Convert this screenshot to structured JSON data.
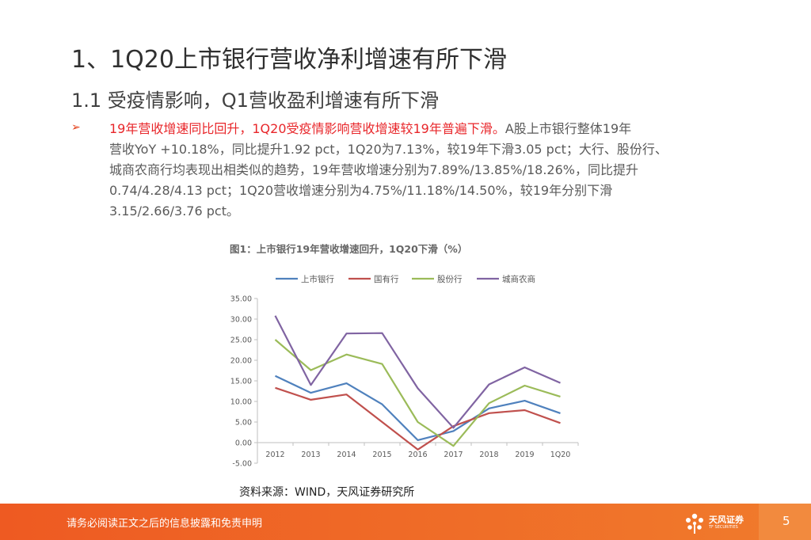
{
  "slide": {
    "title": "1、1Q20上市银行营收净利增速有所下滑",
    "subtitle": "1.1 受疫情影响，Q1营收盈利增速有所下滑",
    "bullet_marker": "➢",
    "bullet": {
      "highlight": "19年营收增速同比回升，1Q20受疫情影响营收增速较19年普遍下滑。",
      "line1_rest": "A股上市银行整体19年",
      "line2": "营收YoY +10.18%，同比提升1.92 pct，1Q20为7.13%，较19年下滑3.05 pct；大行、股份行、",
      "line3": "城商农商行均表现出相类似的趋势，19年营收增速分别为7.89%/13.85%/18.26%，同比提升",
      "line4": "0.74/4.28/4.13 pct；1Q20营收增速分别为4.75%/11.18%/14.50%，较19年分别下滑",
      "line5": "3.15/2.66/3.76 pct。"
    },
    "figure_title": "图1：上市银行19年营收增速回升，1Q20下滑（%）",
    "source": "资料来源：WIND，天风证券研究所"
  },
  "footer": {
    "disclaimer": "请务必阅读正文之后的信息披露和免责申明",
    "brand": "天风证券",
    "brand_en": "TF SECURITIES",
    "page_number": "5"
  },
  "chart_data": {
    "type": "line",
    "title": "图1：上市银行19年营收增速回升，1Q20下滑（%）",
    "categories": [
      "2012",
      "2013",
      "2014",
      "2015",
      "2016",
      "2017",
      "2018",
      "2019",
      "1Q20"
    ],
    "y_ticks": [
      "35.00",
      "30.00",
      "25.00",
      "20.00",
      "15.00",
      "10.00",
      "5.00",
      "0.00",
      "-5.00"
    ],
    "ylim": [
      -5,
      35
    ],
    "legend_position": "top",
    "series": [
      {
        "name": "上市银行",
        "color": "#4f81bd",
        "values": [
          16.2,
          12.1,
          14.4,
          9.3,
          0.6,
          2.8,
          8.3,
          10.18,
          7.13
        ]
      },
      {
        "name": "国有行",
        "color": "#c0504d",
        "values": [
          13.3,
          10.4,
          11.7,
          5.0,
          -1.7,
          4.0,
          7.15,
          7.89,
          4.75
        ]
      },
      {
        "name": "股份行",
        "color": "#9bbb59",
        "values": [
          25.0,
          17.6,
          21.4,
          19.1,
          5.0,
          -0.8,
          9.57,
          13.85,
          11.18
        ]
      },
      {
        "name": "城商农商",
        "color": "#8064a2",
        "values": [
          30.8,
          14.0,
          26.5,
          26.6,
          13.2,
          3.6,
          14.13,
          18.26,
          14.5
        ]
      }
    ]
  }
}
